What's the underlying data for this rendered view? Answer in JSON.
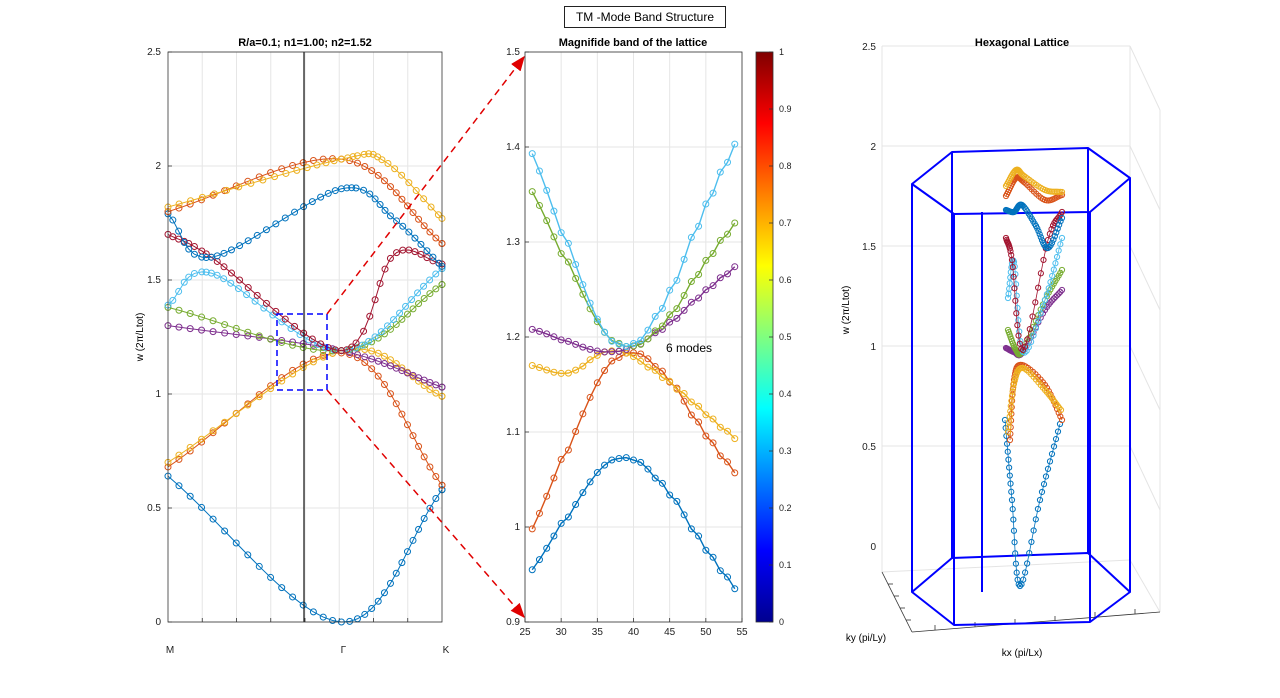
{
  "figure": {
    "suptitle": "TM -Mode Band Structure"
  },
  "colors": {
    "blue": "#0072BD",
    "orange": "#D95319",
    "yellow": "#EDB120",
    "purple": "#7E2F8E",
    "green": "#77AC30",
    "cyan": "#4DBEEE",
    "darkred": "#A2142F",
    "box": "#0000FF",
    "arrow": "#E00000"
  },
  "chart_data": [
    {
      "type": "line",
      "title": "R/a=0.1; n1=1.00; n2=1.52",
      "ylabel": "w (2π/Ltot)",
      "xlabel": "",
      "ylim": [
        0,
        2.5
      ],
      "yticks": [
        "0",
        "0.5",
        "1",
        "1.5",
        "2",
        "2.5"
      ],
      "xtick_labels": [
        "M",
        "Γ",
        "K"
      ],
      "grid": true,
      "series": [
        {
          "color": "blue",
          "x": [
            0,
            1,
            1.58
          ],
          "values": [
            0.64,
            0.0,
            0.58
          ]
        },
        {
          "color": "orange",
          "x": [
            0,
            1,
            1.58
          ],
          "values": [
            0.68,
            1.18,
            0.6
          ]
        },
        {
          "color": "yellow",
          "x": [
            0,
            1,
            1.58
          ],
          "values": [
            0.7,
            1.19,
            0.99
          ]
        },
        {
          "color": "purple",
          "x": [
            0,
            1,
            1.58
          ],
          "values": [
            1.3,
            1.19,
            1.03
          ]
        },
        {
          "color": "green",
          "x": [
            0,
            1,
            1.58
          ],
          "values": [
            1.38,
            1.19,
            1.48
          ]
        },
        {
          "color": "cyan",
          "x": [
            0,
            0.25,
            1,
            1.58
          ],
          "values": [
            1.39,
            1.53,
            1.19,
            1.55
          ]
        },
        {
          "color": "darkred",
          "x": [
            0,
            0.25,
            1,
            1.3,
            1.58
          ],
          "values": [
            1.7,
            1.6,
            1.19,
            1.61,
            1.57
          ]
        },
        {
          "color": "blue",
          "x": [
            0,
            0.25,
            1,
            1.3,
            1.58
          ],
          "values": [
            1.79,
            1.6,
            1.9,
            1.77,
            1.56
          ]
        },
        {
          "color": "orange",
          "x": [
            0,
            1,
            1.58
          ],
          "values": [
            1.8,
            2.03,
            1.66
          ]
        },
        {
          "color": "yellow",
          "x": [
            0,
            1,
            1.25,
            1.58
          ],
          "values": [
            1.82,
            2.03,
            2.02,
            1.77
          ]
        }
      ]
    },
    {
      "type": "line",
      "title": "Magnifide band of the lattice",
      "xlim": [
        25,
        55
      ],
      "ylim": [
        0.9,
        1.5
      ],
      "xticks": [
        "25",
        "30",
        "35",
        "40",
        "45",
        "50",
        "55"
      ],
      "yticks": [
        "0.9",
        "1",
        "1.1",
        "1.2",
        "1.3",
        "1.4",
        "1.5"
      ],
      "grid": true,
      "annotation": "6 modes",
      "colorbar_ticks": [
        "0",
        "0.1",
        "0.2",
        "0.3",
        "0.4",
        "0.5",
        "0.6",
        "0.7",
        "0.8",
        "0.9",
        "1"
      ],
      "series": [
        {
          "color": "blue",
          "x": [
            26,
            39,
            54
          ],
          "values": [
            0.955,
            1.073,
            0.935
          ]
        },
        {
          "color": "orange",
          "x": [
            26,
            39,
            54
          ],
          "values": [
            0.998,
            1.183,
            1.057
          ]
        },
        {
          "color": "yellow",
          "x": [
            26,
            31,
            39,
            54
          ],
          "values": [
            1.17,
            1.162,
            1.183,
            1.093
          ]
        },
        {
          "color": "purple",
          "x": [
            26,
            39,
            54
          ],
          "values": [
            1.208,
            1.187,
            1.274
          ]
        },
        {
          "color": "green",
          "x": [
            26,
            39,
            54
          ],
          "values": [
            1.353,
            1.19,
            1.32
          ]
        },
        {
          "color": "cyan",
          "x": [
            26,
            39,
            54
          ],
          "values": [
            1.393,
            1.19,
            1.403
          ]
        }
      ]
    },
    {
      "type": "3d-line",
      "title": "Hexagonal Lattice",
      "zlabel": "w (2π/Ltot)",
      "xlabel": "kx (pi/Lx)",
      "ylabel": "ky (pi/Ly)",
      "zlim": [
        0,
        2.5
      ],
      "zticks": [
        "0",
        "0.5",
        "1",
        "1.5",
        "2",
        "2.5"
      ]
    }
  ]
}
